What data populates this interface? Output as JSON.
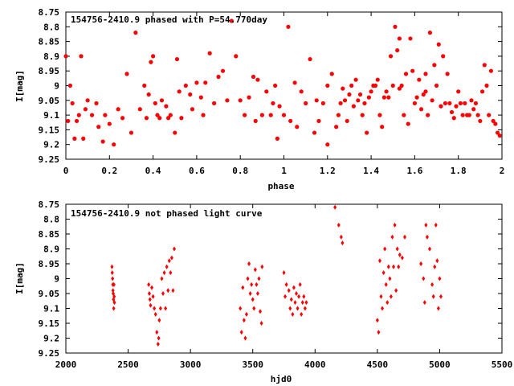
{
  "chart_data": [
    {
      "type": "scatter",
      "title": "154756-2410.9 phased with P=54.770day",
      "xlabel": "phase",
      "ylabel": "I[mag]",
      "xlim": [
        0,
        2
      ],
      "ylim": [
        9.25,
        8.75
      ],
      "y_inverted": true,
      "grid": false,
      "x_ticks": [
        "0",
        "0.2",
        "0.4",
        "0.6",
        "0.8",
        "1",
        "1.2",
        "1.4",
        "1.6",
        "1.8",
        "2"
      ],
      "y_ticks": [
        "8.75",
        "8.8",
        "8.85",
        "8.9",
        "8.95",
        "9",
        "9.05",
        "9.1",
        "9.15",
        "9.2",
        "9.25"
      ],
      "marker": "filled-circle",
      "color": "#ff0000",
      "series": [
        {
          "points": [
            [
              0.0,
              8.9
            ],
            [
              0.01,
              9.12
            ],
            [
              0.02,
              9.0
            ],
            [
              0.03,
              9.06
            ],
            [
              0.04,
              9.18
            ],
            [
              0.05,
              9.12
            ],
            [
              0.06,
              9.1
            ],
            [
              0.07,
              8.9
            ],
            [
              0.08,
              9.18
            ],
            [
              0.09,
              9.08
            ],
            [
              0.1,
              9.05
            ],
            [
              0.12,
              9.1
            ],
            [
              0.14,
              9.06
            ],
            [
              0.15,
              9.14
            ],
            [
              0.17,
              9.19
            ],
            [
              0.18,
              9.1
            ],
            [
              0.2,
              9.13
            ],
            [
              0.22,
              9.2
            ],
            [
              0.24,
              9.08
            ],
            [
              0.26,
              9.11
            ],
            [
              0.28,
              8.96
            ],
            [
              0.3,
              9.16
            ],
            [
              0.32,
              8.82
            ],
            [
              0.34,
              9.08
            ],
            [
              0.36,
              9.0
            ],
            [
              0.37,
              9.11
            ],
            [
              0.38,
              9.03
            ],
            [
              0.39,
              8.92
            ],
            [
              0.4,
              8.9
            ],
            [
              0.41,
              9.06
            ],
            [
              0.42,
              9.1
            ],
            [
              0.43,
              9.11
            ],
            [
              0.44,
              9.05
            ],
            [
              0.46,
              9.07
            ],
            [
              0.47,
              9.11
            ],
            [
              0.48,
              9.1
            ],
            [
              0.5,
              9.16
            ],
            [
              0.51,
              8.91
            ],
            [
              0.52,
              9.02
            ],
            [
              0.53,
              9.11
            ],
            [
              0.55,
              9.0
            ],
            [
              0.57,
              9.03
            ],
            [
              0.58,
              9.08
            ],
            [
              0.6,
              8.99
            ],
            [
              0.62,
              9.04
            ],
            [
              0.63,
              9.1
            ],
            [
              0.64,
              8.99
            ],
            [
              0.66,
              8.89
            ],
            [
              0.68,
              9.06
            ],
            [
              0.7,
              8.97
            ],
            [
              0.72,
              8.95
            ],
            [
              0.74,
              9.05
            ],
            [
              0.76,
              8.78
            ],
            [
              0.78,
              8.9
            ],
            [
              0.8,
              9.05
            ],
            [
              0.82,
              9.1
            ],
            [
              0.84,
              9.04
            ],
            [
              0.86,
              8.97
            ],
            [
              0.87,
              9.12
            ],
            [
              0.88,
              8.98
            ],
            [
              0.9,
              9.1
            ],
            [
              0.92,
              9.02
            ],
            [
              0.94,
              9.1
            ],
            [
              0.95,
              9.06
            ],
            [
              0.96,
              9.0
            ],
            [
              0.97,
              9.18
            ],
            [
              0.98,
              9.07
            ],
            [
              1.0,
              9.1
            ],
            [
              1.02,
              8.8
            ],
            [
              1.03,
              9.12
            ],
            [
              1.05,
              8.99
            ],
            [
              1.06,
              9.14
            ],
            [
              1.08,
              9.02
            ],
            [
              1.1,
              9.06
            ],
            [
              1.12,
              8.91
            ],
            [
              1.14,
              9.16
            ],
            [
              1.15,
              9.05
            ],
            [
              1.16,
              9.12
            ],
            [
              1.18,
              9.06
            ],
            [
              1.2,
              9.2
            ],
            [
              1.22,
              8.96
            ],
            [
              1.24,
              9.14
            ],
            [
              1.26,
              9.06
            ],
            [
              1.27,
              9.01
            ],
            [
              1.28,
              9.05
            ],
            [
              1.29,
              9.12
            ],
            [
              1.3,
              9.03
            ],
            [
              1.31,
              9.0
            ],
            [
              1.32,
              9.07
            ],
            [
              1.33,
              8.98
            ],
            [
              1.34,
              9.05
            ],
            [
              1.35,
              9.03
            ],
            [
              1.36,
              9.1
            ],
            [
              1.37,
              9.06
            ],
            [
              1.38,
              9.16
            ],
            [
              1.39,
              9.04
            ],
            [
              1.4,
              9.02
            ],
            [
              1.41,
              9.0
            ],
            [
              1.42,
              9.0
            ],
            [
              1.44,
              9.1
            ],
            [
              1.45,
              9.14
            ],
            [
              1.46,
              9.04
            ],
            [
              1.47,
              9.02
            ],
            [
              1.48,
              9.04
            ],
            [
              1.49,
              8.9
            ],
            [
              1.5,
              9.0
            ],
            [
              1.51,
              8.8
            ],
            [
              1.52,
              8.88
            ],
            [
              1.53,
              8.84
            ],
            [
              1.54,
              9.0
            ],
            [
              1.55,
              9.1
            ],
            [
              1.56,
              8.96
            ],
            [
              1.57,
              9.13
            ],
            [
              1.58,
              8.84
            ],
            [
              1.59,
              8.95
            ],
            [
              1.6,
              9.06
            ],
            [
              1.61,
              9.04
            ],
            [
              1.62,
              8.98
            ],
            [
              1.63,
              9.08
            ],
            [
              1.64,
              9.03
            ],
            [
              1.65,
              8.96
            ],
            [
              1.66,
              9.1
            ],
            [
              1.67,
              8.82
            ],
            [
              1.68,
              9.05
            ],
            [
              1.69,
              8.93
            ],
            [
              1.7,
              9.0
            ],
            [
              1.71,
              8.86
            ],
            [
              1.72,
              9.07
            ],
            [
              1.73,
              8.9
            ],
            [
              1.74,
              9.06
            ],
            [
              1.75,
              8.96
            ],
            [
              1.76,
              9.06
            ],
            [
              1.77,
              9.09
            ],
            [
              1.78,
              9.11
            ],
            [
              1.79,
              9.07
            ],
            [
              1.8,
              9.02
            ],
            [
              1.81,
              9.06
            ],
            [
              1.82,
              9.1
            ],
            [
              1.83,
              9.06
            ],
            [
              1.84,
              9.1
            ],
            [
              1.85,
              9.1
            ],
            [
              1.86,
              9.05
            ],
            [
              1.87,
              9.08
            ],
            [
              1.88,
              9.06
            ],
            [
              1.89,
              9.1
            ],
            [
              1.9,
              9.12
            ],
            [
              1.91,
              9.02
            ],
            [
              1.92,
              8.93
            ],
            [
              1.93,
              9.0
            ],
            [
              1.94,
              9.1
            ],
            [
              1.95,
              8.95
            ],
            [
              1.96,
              9.12
            ],
            [
              1.97,
              9.13
            ],
            [
              1.98,
              9.16
            ],
            [
              1.99,
              9.17
            ],
            [
              1.2,
              9.0
            ],
            [
              1.25,
              9.1
            ],
            [
              1.43,
              8.98
            ],
            [
              1.53,
              9.01
            ],
            [
              1.65,
              9.02
            ]
          ]
        }
      ]
    },
    {
      "type": "scatter",
      "title": "154756-2410.9 not phased light curve",
      "xlabel": "hjd0",
      "ylabel": "I[mag]",
      "xlim": [
        2000,
        5500
      ],
      "ylim": [
        9.25,
        8.75
      ],
      "y_inverted": true,
      "grid": false,
      "x_ticks": [
        "2000",
        "2500",
        "3000",
        "3500",
        "4000",
        "4500",
        "5000",
        "5500"
      ],
      "y_ticks": [
        "8.75",
        "8.8",
        "8.85",
        "8.9",
        "8.95",
        "9",
        "9.05",
        "9.1",
        "9.15",
        "9.2",
        "9.25"
      ],
      "marker": "diamond",
      "color": "#ff0000",
      "series": [
        {
          "points": [
            [
              2370,
              8.96
            ],
            [
              2372,
              8.98
            ],
            [
              2375,
              9.0
            ],
            [
              2377,
              9.02
            ],
            [
              2378,
              9.04
            ],
            [
              2380,
              9.05
            ],
            [
              2382,
              9.07
            ],
            [
              2384,
              9.1
            ],
            [
              2386,
              9.02
            ],
            [
              2388,
              9.06
            ],
            [
              2390,
              9.08
            ],
            [
              2665,
              9.02
            ],
            [
              2670,
              9.05
            ],
            [
              2675,
              9.07
            ],
            [
              2680,
              9.09
            ],
            [
              2690,
              9.03
            ],
            [
              2700,
              9.06
            ],
            [
              2710,
              9.1
            ],
            [
              2720,
              9.12
            ],
            [
              2730,
              9.18
            ],
            [
              2740,
              9.22
            ],
            [
              2745,
              9.2
            ],
            [
              2750,
              9.14
            ],
            [
              2760,
              9.1
            ],
            [
              2770,
              9.0
            ],
            [
              2780,
              9.05
            ],
            [
              2790,
              8.98
            ],
            [
              2800,
              9.1
            ],
            [
              2810,
              8.96
            ],
            [
              2820,
              9.04
            ],
            [
              2830,
              8.94
            ],
            [
              2840,
              8.98
            ],
            [
              2850,
              8.93
            ],
            [
              2860,
              9.04
            ],
            [
              2870,
              8.9
            ],
            [
              3400,
              9.1
            ],
            [
              3410,
              9.18
            ],
            [
              3420,
              9.03
            ],
            [
              3430,
              9.14
            ],
            [
              3440,
              9.2
            ],
            [
              3450,
              9.12
            ],
            [
              3460,
              9.0
            ],
            [
              3470,
              8.95
            ],
            [
              3480,
              9.05
            ],
            [
              3490,
              9.02
            ],
            [
              3500,
              9.07
            ],
            [
              3510,
              9.1
            ],
            [
              3520,
              8.97
            ],
            [
              3530,
              9.02
            ],
            [
              3540,
              9.05
            ],
            [
              3550,
              9.0
            ],
            [
              3560,
              9.11
            ],
            [
              3570,
              9.15
            ],
            [
              3575,
              8.96
            ],
            [
              3750,
              8.98
            ],
            [
              3760,
              9.06
            ],
            [
              3770,
              9.02
            ],
            [
              3790,
              9.04
            ],
            [
              3800,
              9.1
            ],
            [
              3810,
              9.07
            ],
            [
              3820,
              9.12
            ],
            [
              3830,
              9.03
            ],
            [
              3840,
              9.08
            ],
            [
              3850,
              9.05
            ],
            [
              3860,
              9.1
            ],
            [
              3870,
              9.06
            ],
            [
              3880,
              9.02
            ],
            [
              3890,
              9.12
            ],
            [
              3900,
              9.08
            ],
            [
              3910,
              9.06
            ],
            [
              3920,
              9.1
            ],
            [
              3930,
              9.08
            ],
            [
              4160,
              8.76
            ],
            [
              4190,
              8.82
            ],
            [
              4210,
              8.86
            ],
            [
              4220,
              8.88
            ],
            [
              4500,
              9.14
            ],
            [
              4510,
              9.18
            ],
            [
              4520,
              8.94
            ],
            [
              4530,
              9.06
            ],
            [
              4540,
              9.1
            ],
            [
              4550,
              8.98
            ],
            [
              4560,
              8.9
            ],
            [
              4570,
              9.02
            ],
            [
              4580,
              9.08
            ],
            [
              4590,
              8.96
            ],
            [
              4600,
              9.0
            ],
            [
              4610,
              9.06
            ],
            [
              4620,
              8.86
            ],
            [
              4630,
              8.96
            ],
            [
              4640,
              8.82
            ],
            [
              4650,
              9.04
            ],
            [
              4660,
              8.9
            ],
            [
              4670,
              8.96
            ],
            [
              4680,
              8.92
            ],
            [
              4700,
              8.93
            ],
            [
              4720,
              8.86
            ],
            [
              4850,
              8.95
            ],
            [
              4870,
              9.0
            ],
            [
              4880,
              9.08
            ],
            [
              4890,
              8.82
            ],
            [
              4900,
              8.86
            ],
            [
              4920,
              8.9
            ],
            [
              4940,
              9.02
            ],
            [
              4950,
              9.06
            ],
            [
              4960,
              8.96
            ],
            [
              4970,
              8.82
            ],
            [
              4980,
              8.94
            ],
            [
              4990,
              9.1
            ],
            [
              5000,
              9.0
            ],
            [
              5010,
              9.06
            ]
          ]
        }
      ]
    }
  ]
}
